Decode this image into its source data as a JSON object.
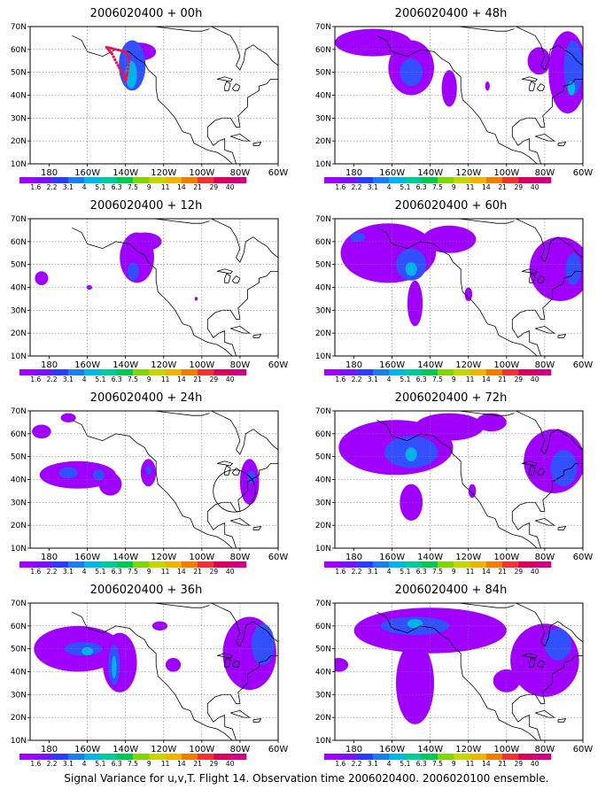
{
  "caption": "Signal Variance for u,v,T. Flight 14. Observation time 2006020400. 2006020100 ensemble.",
  "chart_data": {
    "type": "heatmap",
    "x_ticks": [
      "180",
      "160W",
      "140W",
      "120W",
      "100W",
      "80W",
      "60W"
    ],
    "y_ticks": [
      "10N",
      "20N",
      "30N",
      "40N",
      "50N",
      "60N",
      "70N"
    ],
    "xlim_lon": [
      -190,
      -60
    ],
    "ylim_lat": [
      10,
      70
    ],
    "grid": true,
    "colorbar": {
      "labels": [
        "1.6",
        "2.2",
        "3.1",
        "4",
        "5.1",
        "6.3",
        "7.5",
        "9",
        "11",
        "14",
        "21",
        "29",
        "40"
      ],
      "colors": [
        "#9f00ff",
        "#7a12ff",
        "#2a3cff",
        "#1c7cf2",
        "#00b6e6",
        "#00cc9a",
        "#00c850",
        "#80d600",
        "#c4d800",
        "#f0b400",
        "#ef7d00",
        "#f03232",
        "#dc005a",
        "#d00080"
      ]
    },
    "panels": [
      {
        "title": "2006020400 + 00h",
        "blobs": [
          {
            "lon": -136.5,
            "lat": 53,
            "rx": 7,
            "ry": 11,
            "level": 2
          },
          {
            "lon": -133,
            "lat": 59,
            "rx": 9,
            "ry": 4,
            "level": 1
          },
          {
            "lon": -137,
            "lat": 49,
            "rx": 3,
            "ry": 6,
            "level": 3
          }
        ],
        "flight_track": [
          [
            -150,
            61
          ],
          [
            -147,
            58
          ],
          [
            -144,
            53
          ],
          [
            -141,
            49
          ],
          [
            -140,
            46
          ],
          [
            -139,
            50
          ],
          [
            -138,
            56
          ],
          [
            -140,
            59
          ],
          [
            -145,
            60
          ],
          [
            -150,
            61
          ]
        ],
        "circle": null
      },
      {
        "title": "2006020400 + 12h",
        "blobs": [
          {
            "lon": -134,
            "lat": 53,
            "rx": 9,
            "ry": 11,
            "level": 1
          },
          {
            "lon": -130,
            "lat": 60,
            "rx": 9,
            "ry": 4,
            "level": 1
          },
          {
            "lon": -136,
            "lat": 47,
            "rx": 3,
            "ry": 4,
            "level": 2
          },
          {
            "lon": -184,
            "lat": 44,
            "rx": 3.5,
            "ry": 3,
            "level": 1
          },
          {
            "lon": -159,
            "lat": 40,
            "rx": 1.5,
            "ry": 1,
            "level": 1
          },
          {
            "lon": -103,
            "lat": 35,
            "rx": 0.8,
            "ry": 0.8,
            "level": 1
          }
        ],
        "flight_track": [],
        "circle": null
      },
      {
        "title": "2006020400 + 24h",
        "blobs": [
          {
            "lon": -165,
            "lat": 42,
            "rx": 20,
            "ry": 6,
            "level": 1
          },
          {
            "lon": -148,
            "lat": 38,
            "rx": 6,
            "ry": 5,
            "level": 1
          },
          {
            "lon": -170,
            "lat": 43,
            "rx": 5,
            "ry": 2.5,
            "level": 2
          },
          {
            "lon": -154,
            "lat": 42,
            "rx": 3,
            "ry": 2.5,
            "level": 2
          },
          {
            "lon": -184,
            "lat": 61,
            "rx": 5,
            "ry": 3,
            "level": 1
          },
          {
            "lon": -170,
            "lat": 67,
            "rx": 4,
            "ry": 2,
            "level": 1
          },
          {
            "lon": -128,
            "lat": 43,
            "rx": 4,
            "ry": 6,
            "level": 1
          },
          {
            "lon": -128,
            "lat": 44,
            "rx": 1.5,
            "ry": 2,
            "level": 2
          },
          {
            "lon": -75,
            "lat": 39,
            "rx": 5,
            "ry": 10,
            "level": 1
          },
          {
            "lon": -74,
            "lat": 41,
            "rx": 2,
            "ry": 3,
            "level": 2
          }
        ],
        "flight_track": [],
        "circle": {
          "lon": -83,
          "lat": 35,
          "r": 11
        }
      },
      {
        "title": "2006020400 + 36h",
        "blobs": [
          {
            "lon": -165,
            "lat": 50,
            "rx": 23,
            "ry": 10,
            "level": 1
          },
          {
            "lon": -143,
            "lat": 44,
            "rx": 9,
            "ry": 13,
            "level": 1
          },
          {
            "lon": -162,
            "lat": 50,
            "rx": 10,
            "ry": 3,
            "level": 2
          },
          {
            "lon": -160,
            "lat": 49,
            "rx": 3,
            "ry": 1.8,
            "level": 3
          },
          {
            "lon": -146,
            "lat": 43,
            "rx": 3,
            "ry": 9,
            "level": 2
          },
          {
            "lon": -146,
            "lat": 42,
            "rx": 1.2,
            "ry": 5,
            "level": 3
          },
          {
            "lon": -75,
            "lat": 48,
            "rx": 14,
            "ry": 16,
            "level": 1
          },
          {
            "lon": -68,
            "lat": 52,
            "rx": 6,
            "ry": 9,
            "level": 2
          },
          {
            "lon": -115,
            "lat": 43,
            "rx": 4,
            "ry": 3,
            "level": 1
          },
          {
            "lon": -122,
            "lat": 60,
            "rx": 4,
            "ry": 2,
            "level": 1
          }
        ],
        "flight_track": [],
        "circle": null
      },
      {
        "title": "2006020400 + 48h",
        "blobs": [
          {
            "lon": -170,
            "lat": 63,
            "rx": 20,
            "ry": 6,
            "level": 1
          },
          {
            "lon": -150,
            "lat": 52,
            "rx": 12,
            "ry": 12,
            "level": 1
          },
          {
            "lon": -150,
            "lat": 50,
            "rx": 6,
            "ry": 6,
            "level": 2
          },
          {
            "lon": -130,
            "lat": 43,
            "rx": 4,
            "ry": 8,
            "level": 1
          },
          {
            "lon": -83,
            "lat": 55,
            "rx": 6,
            "ry": 6,
            "level": 1
          },
          {
            "lon": -68,
            "lat": 50,
            "rx": 10,
            "ry": 18,
            "level": 1
          },
          {
            "lon": -65,
            "lat": 52,
            "rx": 5,
            "ry": 12,
            "level": 2
          },
          {
            "lon": -66,
            "lat": 43,
            "rx": 2,
            "ry": 3,
            "level": 3
          },
          {
            "lon": -110,
            "lat": 44,
            "rx": 1.2,
            "ry": 2,
            "level": 1
          }
        ],
        "flight_track": [],
        "circle": null
      },
      {
        "title": "2006020400 + 60h",
        "blobs": [
          {
            "lon": -162,
            "lat": 55,
            "rx": 25,
            "ry": 13,
            "level": 1
          },
          {
            "lon": -130,
            "lat": 61,
            "rx": 14,
            "ry": 6,
            "level": 1
          },
          {
            "lon": -148,
            "lat": 33,
            "rx": 4,
            "ry": 10,
            "level": 1
          },
          {
            "lon": -178,
            "lat": 62,
            "rx": 4,
            "ry": 2,
            "level": 2
          },
          {
            "lon": -150,
            "lat": 50,
            "rx": 8,
            "ry": 7,
            "level": 2
          },
          {
            "lon": -150,
            "lat": 48,
            "rx": 3,
            "ry": 3,
            "level": 3
          },
          {
            "lon": -72,
            "lat": 48,
            "rx": 16,
            "ry": 14,
            "level": 1
          },
          {
            "lon": -65,
            "lat": 48,
            "rx": 4,
            "ry": 7,
            "level": 2
          },
          {
            "lon": -120,
            "lat": 37,
            "rx": 2,
            "ry": 3,
            "level": 1
          }
        ],
        "flight_track": [],
        "circle": null
      },
      {
        "title": "2006020400 + 72h",
        "blobs": [
          {
            "lon": -158,
            "lat": 54,
            "rx": 30,
            "ry": 12,
            "level": 1
          },
          {
            "lon": -130,
            "lat": 63,
            "rx": 18,
            "ry": 6,
            "level": 1
          },
          {
            "lon": -150,
            "lat": 30,
            "rx": 6,
            "ry": 8,
            "level": 1
          },
          {
            "lon": -150,
            "lat": 52,
            "rx": 14,
            "ry": 7,
            "level": 2
          },
          {
            "lon": -150,
            "lat": 51,
            "rx": 3,
            "ry": 3,
            "level": 3
          },
          {
            "lon": -75,
            "lat": 48,
            "rx": 16,
            "ry": 14,
            "level": 1
          },
          {
            "lon": -70,
            "lat": 45,
            "rx": 7,
            "ry": 8,
            "level": 2
          },
          {
            "lon": -108,
            "lat": 65,
            "rx": 8,
            "ry": 4,
            "level": 1
          },
          {
            "lon": -118,
            "lat": 35,
            "rx": 2,
            "ry": 3,
            "level": 1
          }
        ],
        "flight_track": [],
        "circle": null
      },
      {
        "title": "2006020400 + 84h",
        "blobs": [
          {
            "lon": -140,
            "lat": 58,
            "rx": 40,
            "ry": 10,
            "level": 1
          },
          {
            "lon": -148,
            "lat": 35,
            "rx": 10,
            "ry": 18,
            "level": 1
          },
          {
            "lon": -188,
            "lat": 43,
            "rx": 5,
            "ry": 3,
            "level": 1
          },
          {
            "lon": -148,
            "lat": 60,
            "rx": 18,
            "ry": 4,
            "level": 2
          },
          {
            "lon": -148,
            "lat": 61,
            "rx": 4,
            "ry": 2,
            "level": 3
          },
          {
            "lon": -80,
            "lat": 45,
            "rx": 18,
            "ry": 16,
            "level": 1
          },
          {
            "lon": -73,
            "lat": 52,
            "rx": 7,
            "ry": 7,
            "level": 2
          },
          {
            "lon": -100,
            "lat": 36,
            "rx": 7,
            "ry": 5,
            "level": 1
          }
        ],
        "flight_track": [],
        "circle": null
      }
    ]
  }
}
